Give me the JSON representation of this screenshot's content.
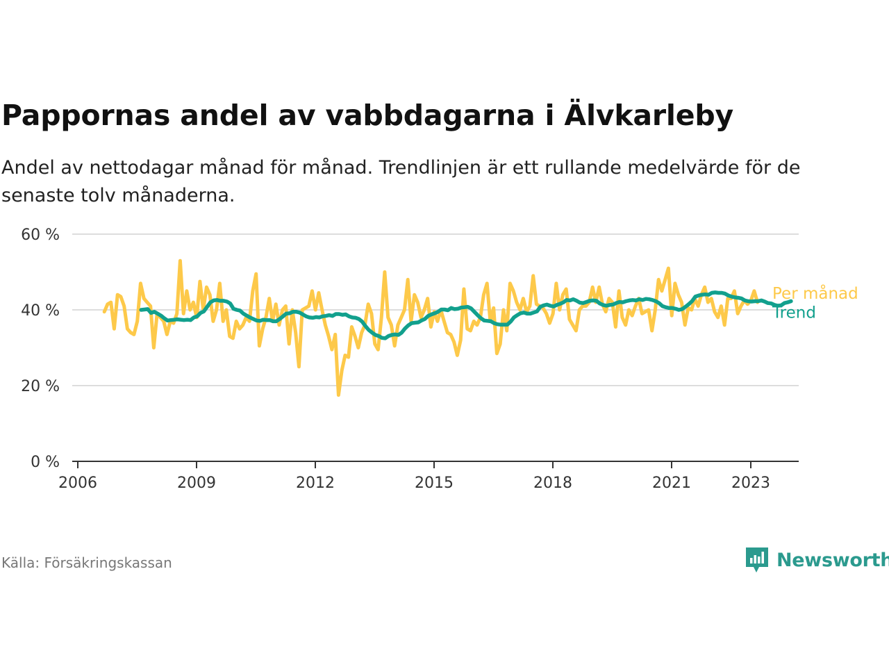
{
  "header": {
    "title": "Pappornas andel av vabbdagarna i Älvkarleby",
    "subtitle": "Andel av nettodagar månad för månad. Trendlinjen är ett rullande medelvärde för de senaste tolv månaderna."
  },
  "footer": {
    "source": "Källa: Försäkringskassan",
    "brand": "Newsworthy"
  },
  "colors": {
    "monthly": "#fdc94a",
    "trend": "#12a08d",
    "grid": "#dddddd",
    "axis": "#333333",
    "brand": "#2b9a8e"
  },
  "icons": {
    "brand_logo": "bar-chart-speech-bubble-icon"
  },
  "chart_data": {
    "type": "line",
    "title": "Pappornas andel av vabbdagarna i Älvkarleby",
    "xlabel": "",
    "ylabel": "",
    "xlim": [
      2006,
      2024.25
    ],
    "ylim": [
      0,
      60
    ],
    "y_ticks": [
      0,
      20,
      40,
      60
    ],
    "y_tick_labels": [
      "0 %",
      "20 %",
      "40 %",
      "60 %"
    ],
    "x_ticks": [
      2006,
      2009,
      2012,
      2015,
      2018,
      2021,
      2023
    ],
    "x_tick_labels": [
      "2006",
      "2009",
      "2012",
      "2015",
      "2018",
      "2021",
      "2023"
    ],
    "grid": true,
    "legend": "right-end-labels",
    "series": [
      {
        "name": "Per månad",
        "color": "#fdc94a",
        "start": 2006.67,
        "step_months": 1,
        "values": [
          39.5,
          41.5,
          42,
          35,
          44,
          43.5,
          41,
          35,
          34,
          33.5,
          37,
          47,
          43,
          42,
          41,
          30,
          39,
          38,
          37,
          33.5,
          37,
          36.5,
          39,
          53,
          39,
          45,
          40,
          42,
          38,
          47.5,
          40,
          46,
          44,
          37,
          40,
          47,
          37,
          40,
          33,
          32.5,
          37,
          35,
          36,
          38,
          37,
          45,
          49.5,
          30.5,
          35,
          38,
          43,
          37,
          41.5,
          36,
          40,
          41,
          31,
          40,
          34,
          25,
          40,
          40.5,
          41,
          45,
          40,
          44.5,
          40,
          36,
          33,
          29.5,
          33.5,
          17.5,
          24,
          28,
          27.5,
          35.5,
          33,
          30,
          34,
          36,
          41.5,
          39,
          31,
          29.5,
          38,
          50,
          38,
          36,
          30.5,
          36,
          38,
          40,
          48,
          37,
          44,
          42,
          38,
          40,
          43,
          35.5,
          39.5,
          37,
          40,
          37,
          34,
          33.5,
          31.5,
          28,
          32,
          45.5,
          35,
          34.5,
          37,
          36,
          38,
          44,
          47,
          37,
          40.5,
          28.5,
          31,
          40,
          34.5,
          47,
          45,
          42,
          40,
          43,
          39.5,
          41,
          49,
          41.5,
          41,
          40.5,
          39,
          36.5,
          39,
          47,
          40,
          44,
          45.5,
          37.5,
          36,
          34.5,
          40,
          41,
          41,
          42,
          46,
          42,
          46,
          41.5,
          39.5,
          43,
          42,
          35.5,
          45,
          38,
          36,
          40,
          38.5,
          41,
          43,
          39,
          39.5,
          40,
          34.5,
          40,
          48,
          45,
          48,
          51,
          38.5,
          47,
          44,
          42,
          36,
          40.5,
          40,
          43,
          41,
          44,
          46,
          42,
          43,
          39.5,
          38,
          41,
          36,
          43,
          43,
          45,
          39,
          41,
          42.5,
          41.5,
          42.5,
          45,
          42
        ]
      },
      {
        "name": "Trend",
        "color": "#12a08d",
        "start": 2007.6,
        "step_months": 1,
        "values": [
          40,
          40.1,
          40.2,
          39.2,
          39.5,
          39,
          38.5,
          37.8,
          37.2,
          37.3,
          37.4,
          37.5,
          37.4,
          37.3,
          37.4,
          37.3,
          38,
          38.3,
          39.2,
          39.6,
          40.8,
          42,
          42.5,
          42.6,
          42.4,
          42.4,
          42.2,
          41.7,
          40.3,
          40,
          39.8,
          39,
          38.5,
          38,
          37.6,
          37.2,
          37.1,
          37.4,
          37.3,
          37.3,
          37,
          37,
          37.6,
          38.3,
          39,
          39.1,
          39.5,
          39.5,
          39.3,
          38.8,
          38.3,
          38,
          37.9,
          38.1,
          38,
          38.3,
          38.4,
          38.6,
          38.4,
          38.9,
          38.9,
          38.7,
          38.8,
          38.3,
          38,
          37.9,
          37.6,
          36.9,
          35.7,
          34.7,
          34,
          33.4,
          33.1,
          32.6,
          32.5,
          33.1,
          33.4,
          33.5,
          33.4,
          34,
          35.1,
          35.9,
          36.5,
          36.6,
          36.7,
          37.2,
          37.6,
          38.4,
          38.8,
          39.1,
          39.5,
          40.1,
          40.1,
          39.9,
          40.5,
          40.2,
          40.3,
          40.6,
          40.7,
          40.8,
          40.4,
          39.5,
          38.6,
          37.8,
          37.2,
          37.1,
          37,
          36.5,
          36.2,
          36.1,
          36.1,
          36.1,
          36.9,
          38,
          38.6,
          39.1,
          39.3,
          39,
          39,
          39.3,
          39.6,
          40.8,
          41.2,
          41.4,
          41.1,
          40.9,
          41.3,
          41.6,
          42,
          42.6,
          42.5,
          42.8,
          42.4,
          41.9,
          41.8,
          42.1,
          42.4,
          42.5,
          42.4,
          41.7,
          41.3,
          41.1,
          41.3,
          41.4,
          41.8,
          42.1,
          42,
          42.3,
          42.5,
          42.6,
          42.5,
          42.8,
          42.6,
          42.9,
          42.8,
          42.6,
          42.3,
          41.8,
          41,
          40.7,
          40.5,
          40.5,
          40.3,
          40,
          40.2,
          40.8,
          41.5,
          42.3,
          43.5,
          43.8,
          44,
          44.1,
          44,
          44.5,
          44.6,
          44.5,
          44.5,
          44.3,
          43.8,
          43.5,
          43.3,
          43.2,
          43,
          42.5,
          42.3,
          42.2,
          42.3,
          42.3,
          42.5,
          42.2,
          41.8,
          41.7,
          41.3,
          41.1,
          41.2,
          41.8,
          42,
          42.3
        ]
      }
    ]
  }
}
